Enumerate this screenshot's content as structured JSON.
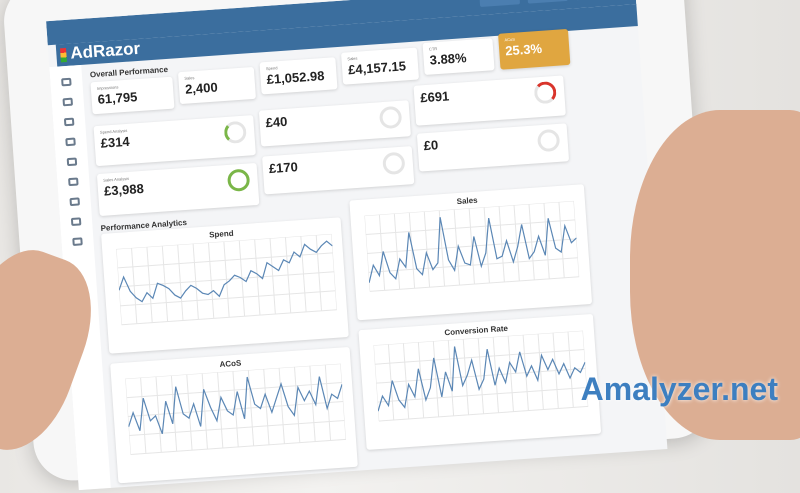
{
  "app": {
    "logo": "AdRazor"
  },
  "overall": {
    "title": "Overall Performance",
    "kpis": [
      {
        "label": "Impressions",
        "value": "61,795"
      },
      {
        "label": "Sales",
        "value": "2,400"
      },
      {
        "label": "Spend",
        "value": "£1,052.98"
      },
      {
        "label": "Sales",
        "value": "£4,157.15"
      },
      {
        "label": "CTR",
        "value": "3.88%"
      },
      {
        "label": "ACoS",
        "value": "25.3%"
      }
    ]
  },
  "spend_analysis": {
    "title": "Spend Analysis",
    "cards": [
      {
        "value": "£314"
      },
      {
        "value": "£40"
      },
      {
        "value": "£691"
      }
    ]
  },
  "sales_analysis": {
    "title": "Sales Analysis",
    "cards": [
      {
        "value": "£3,988"
      },
      {
        "value": "£170"
      },
      {
        "value": "£0"
      }
    ]
  },
  "colors": {
    "header": "#3b6e9e",
    "accent_orange": "#e0a640",
    "donut_green": "#7ab648",
    "donut_red": "#d9342b",
    "line": "#5b87b5"
  },
  "analytics": {
    "title": "Performance Analytics"
  },
  "chart_data": [
    {
      "type": "line",
      "title": "Spend",
      "values": [
        40,
        55,
        38,
        30,
        25,
        35,
        28,
        45,
        42,
        38,
        30,
        26,
        34,
        40,
        36,
        30,
        28,
        32,
        25,
        38,
        42,
        48,
        45,
        40,
        52,
        48,
        42,
        60,
        55,
        50,
        62,
        58,
        70,
        64,
        78,
        72,
        68,
        75,
        80,
        74
      ]
    },
    {
      "type": "line",
      "title": "Sales",
      "values": [
        20,
        60,
        35,
        90,
        40,
        25,
        70,
        50,
        130,
        45,
        30,
        80,
        40,
        55,
        160,
        60,
        35,
        90,
        50,
        45,
        110,
        40,
        70,
        150,
        55,
        60,
        95,
        45,
        80,
        130,
        50,
        65,
        100,
        55,
        140,
        70,
        60,
        120,
        80,
        90
      ]
    },
    {
      "type": "line",
      "title": "ACoS",
      "values": [
        30,
        45,
        25,
        60,
        35,
        40,
        20,
        55,
        30,
        70,
        40,
        35,
        50,
        25,
        65,
        45,
        30,
        55,
        40,
        35,
        60,
        30,
        75,
        45,
        40,
        55,
        35,
        50,
        65,
        40,
        30,
        60,
        45,
        55,
        40,
        70,
        35,
        50,
        45,
        60
      ]
    },
    {
      "type": "line",
      "title": "Conversion Rate",
      "values": [
        10,
        25,
        15,
        40,
        20,
        12,
        35,
        22,
        50,
        18,
        30,
        60,
        20,
        45,
        25,
        70,
        30,
        40,
        55,
        25,
        35,
        65,
        28,
        45,
        30,
        50,
        40,
        60,
        35,
        45,
        30,
        55,
        40,
        50,
        35,
        45,
        30,
        40,
        35,
        45
      ]
    }
  ],
  "watermark": "Amalyzer.net"
}
